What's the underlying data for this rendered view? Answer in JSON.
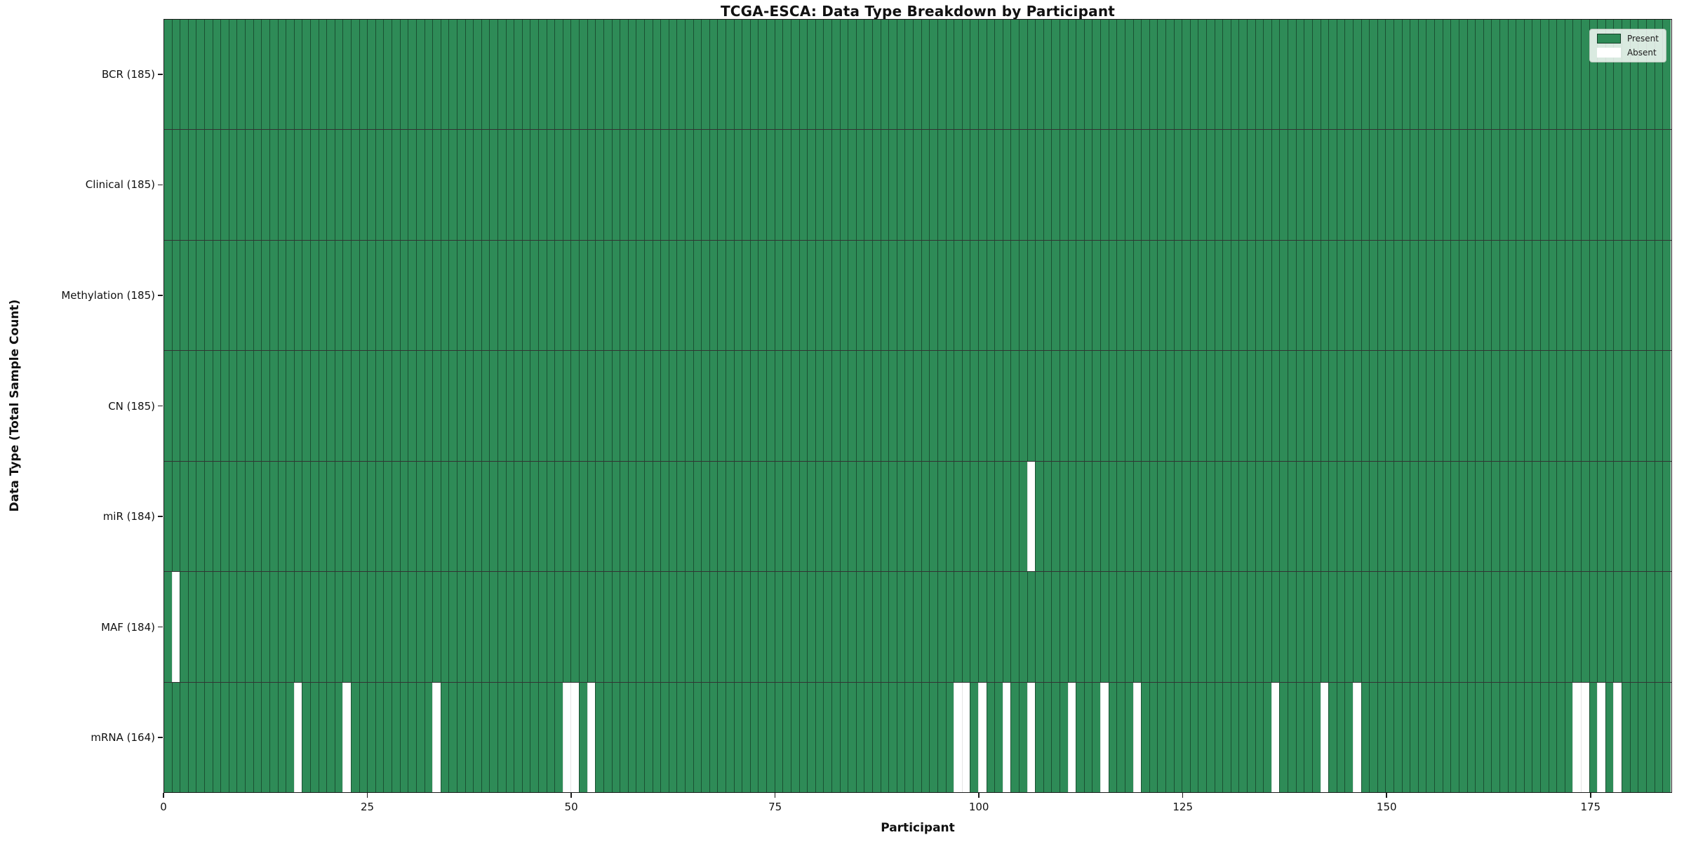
{
  "chart_data": {
    "type": "heatmap",
    "title": "TCGA-ESCA: Data Type Breakdown by Participant",
    "xlabel": "Participant",
    "ylabel": "Data Type (Total Sample Count)",
    "n_participants": 185,
    "x_range": [
      0,
      185
    ],
    "x_ticks": [
      "0",
      "25",
      "50",
      "75",
      "100",
      "125",
      "150",
      "175"
    ],
    "x_tick_values": [
      0,
      25,
      50,
      75,
      100,
      125,
      150,
      175
    ],
    "grid": false,
    "colors": {
      "present": "#2e8b57",
      "absent": "#ffffff"
    },
    "legend": {
      "position": "upper right",
      "items": [
        {
          "label": "Present",
          "swatch": "present-swatch"
        },
        {
          "label": "Absent",
          "swatch": "absent-swatch"
        }
      ]
    },
    "rows": [
      {
        "name": "BCR",
        "label": "BCR (185)",
        "present_count": 185,
        "absent_indices": []
      },
      {
        "name": "Clinical",
        "label": "Clinical (185)",
        "present_count": 185,
        "absent_indices": []
      },
      {
        "name": "Methylation",
        "label": "Methylation (185)",
        "present_count": 185,
        "absent_indices": []
      },
      {
        "name": "CN",
        "label": "CN (185)",
        "present_count": 185,
        "absent_indices": []
      },
      {
        "name": "miR",
        "label": "miR (184)",
        "present_count": 184,
        "absent_indices": [
          106
        ]
      },
      {
        "name": "MAF",
        "label": "MAF (184)",
        "present_count": 184,
        "absent_indices": [
          1
        ]
      },
      {
        "name": "mRNA",
        "label": "mRNA (164)",
        "present_count": 164,
        "absent_indices": [
          16,
          22,
          33,
          49,
          50,
          52,
          97,
          98,
          100,
          103,
          106,
          111,
          115,
          119,
          136,
          142,
          146,
          173,
          174,
          176,
          178
        ]
      }
    ]
  }
}
